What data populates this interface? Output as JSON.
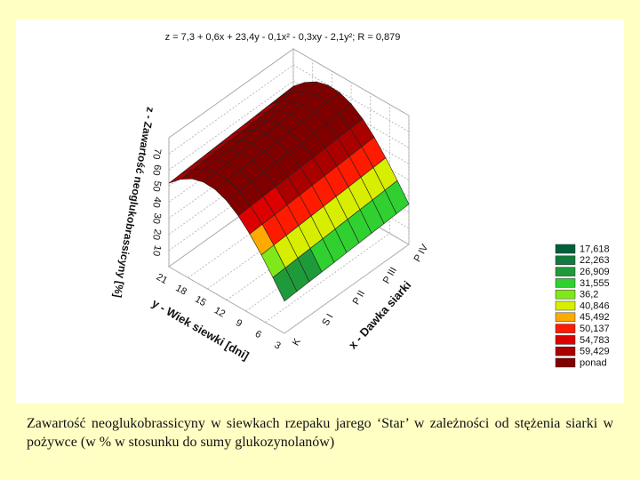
{
  "chart_data": {
    "type": "surface",
    "title": "z = 7,3 + 0,6x + 23,4y - 0,1x² - 0,3xy - 2,1y²; R = 0,879",
    "x_label": "x - Dawka siarki",
    "y_label": "y - Wiek siewki [dni]",
    "z_label": "z - Zawartość neoglukobrassicyny [%]",
    "categories": [
      "K",
      "S I",
      "P II",
      "P III",
      "P IV"
    ],
    "ylim": [
      21,
      3
    ],
    "yticks": [
      21,
      18,
      15,
      12,
      9,
      6,
      3
    ],
    "zlim": [
      0,
      80
    ],
    "zticks": [
      10,
      20,
      30,
      40,
      50,
      60,
      70
    ],
    "legend": [
      {
        "value": 17.618,
        "label": "17,618",
        "color": "#00603a"
      },
      {
        "value": 22.263,
        "label": "22,263",
        "color": "#137a3d"
      },
      {
        "value": 26.909,
        "label": "26,909",
        "color": "#1f9a3a"
      },
      {
        "value": 31.555,
        "label": "31,555",
        "color": "#2fd02f"
      },
      {
        "value": 36.2,
        "label": "36,2",
        "color": "#7ee81a"
      },
      {
        "value": 40.846,
        "label": "40,846",
        "color": "#d8ee00"
      },
      {
        "value": 45.492,
        "label": "45,492",
        "color": "#ffaa00"
      },
      {
        "value": 50.137,
        "label": "50,137",
        "color": "#ff1a00"
      },
      {
        "value": 54.783,
        "label": "54,783",
        "color": "#dd0000"
      },
      {
        "value": 59.429,
        "label": "59,429",
        "color": "#aa0000"
      },
      {
        "label": "ponad",
        "color": "#800000"
      }
    ]
  },
  "caption": "Zawartość neoglukobrassicyny w siewkach rzepaku jarego ‘Star’ w zależności od stężenia siarki w pożywce (w % w stosunku do sumy glukozynolanów)"
}
